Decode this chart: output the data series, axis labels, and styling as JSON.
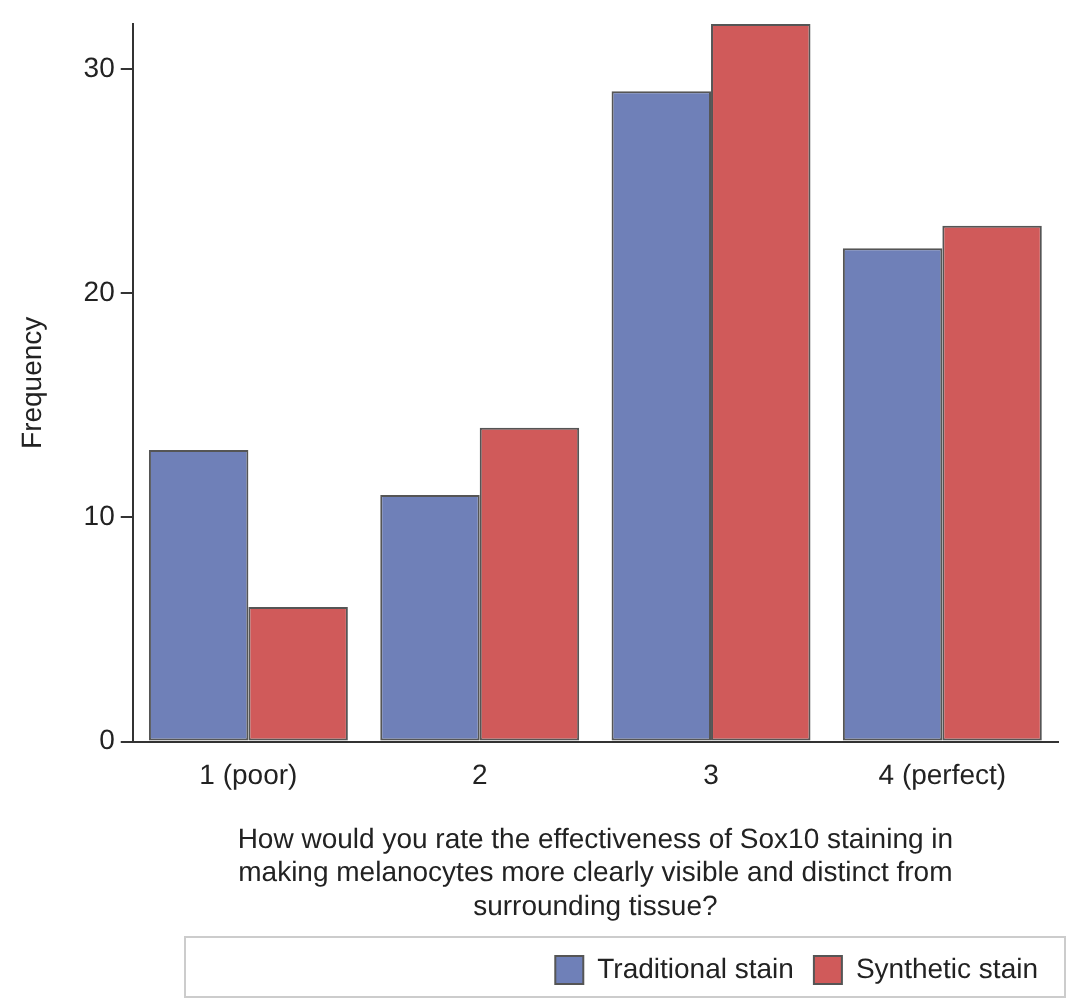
{
  "chart_data": {
    "type": "bar",
    "xlabel": "How would you rate the effectiveness of Sox10 staining in making melanocytes more clearly visible and distinct from surrounding tissue?",
    "ylabel": "Frequency",
    "categories": [
      "1 (poor)",
      "2",
      "3",
      "4 (perfect)"
    ],
    "series": [
      {
        "name": "Traditional stain",
        "color": "#6f80b8",
        "values": [
          13,
          11,
          29,
          22
        ]
      },
      {
        "name": "Synthetic stain",
        "color": "#d05a5a",
        "values": [
          6,
          14,
          32,
          23
        ]
      }
    ],
    "ylim": [
      0,
      32
    ],
    "yticks": [
      0,
      10,
      20,
      30
    ],
    "grid": false,
    "legend": "bottom"
  }
}
